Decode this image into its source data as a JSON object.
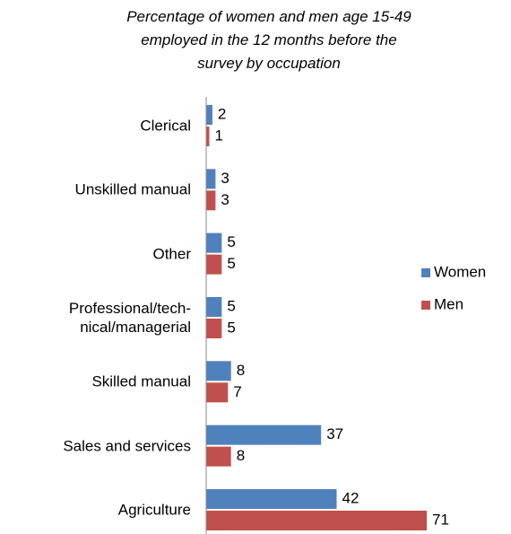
{
  "chart_data": {
    "type": "hbar",
    "title": "Percentage of women and men age 15-49\nemployed in the 12 months before the\nsurvey by occupation",
    "categories": [
      "Clerical",
      "Unskilled manual",
      "Other",
      "Professional/tech-\nnical/managerial",
      "Skilled manual",
      "Sales and services",
      "Agriculture"
    ],
    "series": [
      {
        "name": "Women",
        "color": "#4f81bd",
        "values": [
          2,
          3,
          5,
          5,
          8,
          37,
          42
        ]
      },
      {
        "name": "Men",
        "color": "#c0504d",
        "values": [
          1,
          3,
          5,
          5,
          7,
          8,
          71
        ]
      }
    ],
    "legend": "right"
  }
}
